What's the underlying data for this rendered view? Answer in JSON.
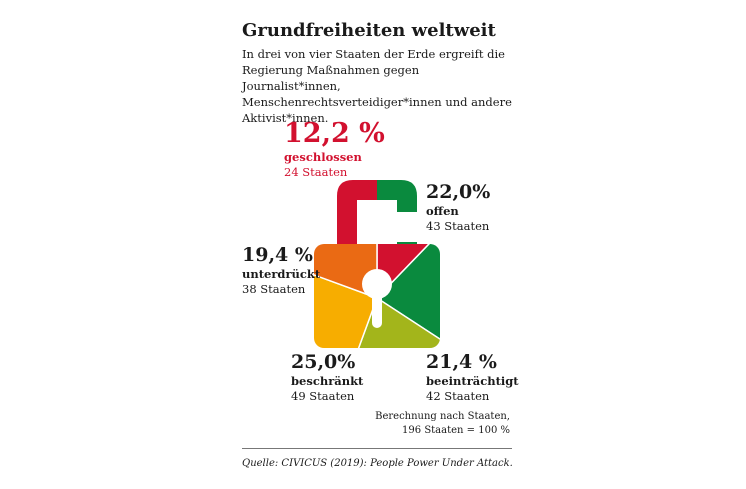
{
  "header": {
    "title": "Grundfreiheiten weltweit",
    "subtitle": "In drei von vier Staaten der Erde ergreift die Regierung Maßnahmen gegen Journalist*innen, Menschenrechtsverteidiger*innen und andere Aktivist*innen."
  },
  "chart_data": {
    "type": "pie",
    "title": "Grundfreiheiten weltweit",
    "total_states": 196,
    "categories": [
      "geschlossen",
      "offen",
      "beeinträchtigt",
      "beschränkt",
      "unterdrückt"
    ],
    "values": [
      12.2,
      22.0,
      21.4,
      25.0,
      19.4
    ],
    "states": [
      24,
      43,
      42,
      49,
      38
    ],
    "colors": [
      "#d2112f",
      "#0a8a3e",
      "#a3b51b",
      "#f7ad00",
      "#ea6a14"
    ],
    "labels": [
      {
        "pct": "12,2 %",
        "name": "geschlossen",
        "count": "24 Staaten"
      },
      {
        "pct": "22,0%",
        "name": "offen",
        "count": "43 Staaten"
      },
      {
        "pct": "21,4 %",
        "name": "beeinträchtigt",
        "count": "42 Staaten"
      },
      {
        "pct": "25,0%",
        "name": "beschränkt",
        "count": "49 Staaten"
      },
      {
        "pct": "19,4 %",
        "name": "unterdrückt",
        "count": "38 Staaten"
      }
    ]
  },
  "note": {
    "line1": "Berechnung nach Staaten,",
    "line2": "196 Staaten = 100 %"
  },
  "source": "Quelle: CIVICUS (2019): People Power Under Attack."
}
